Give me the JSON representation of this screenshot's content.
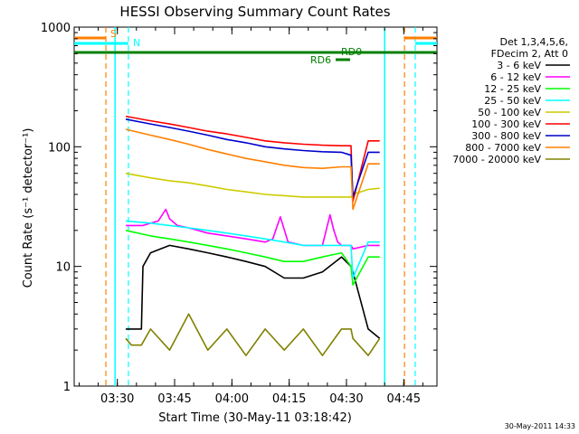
{
  "chart_data": {
    "type": "line",
    "title": "HESSI Observing Summary Count Rates",
    "xlabel": "Start Time (30-May-11 03:18:42)",
    "ylabel": "Count Rate (s⁻¹ detector⁻¹)",
    "x_unit": "minutes after 03:18:42",
    "xlim": [
      0,
      95
    ],
    "ylim": [
      1,
      1000
    ],
    "yscale": "log",
    "x_tick_labels": [
      "03:30",
      "03:45",
      "04:00",
      "04:15",
      "04:30",
      "04:45"
    ],
    "x_tick_values": [
      11.3,
      26.3,
      41.3,
      56.3,
      71.3,
      86.3
    ],
    "y_tick_labels": [
      "1",
      "10",
      "100",
      "1000"
    ],
    "y_tick_values": [
      1,
      10,
      100,
      1000
    ],
    "legend": {
      "placement": "right",
      "header_lines": [
        "Det 1,3,4,5,6,",
        "FDecim 2, Att 0"
      ]
    },
    "series": [
      {
        "name": "3 - 6 keV",
        "color": "#000000",
        "x": [
          13.5,
          17.6,
          18,
          20,
          25,
          30,
          35,
          40,
          45,
          50,
          55,
          60,
          65,
          70,
          72.5,
          73,
          77,
          80
        ],
        "values": [
          3,
          3,
          10,
          13,
          15,
          14,
          13,
          12,
          11,
          10,
          8,
          8,
          9,
          12,
          10,
          9,
          3,
          2.5
        ]
      },
      {
        "name": "6 - 12 keV",
        "color": "#ff00ff",
        "x": [
          13.5,
          18,
          22,
          24,
          25,
          27,
          30,
          35,
          40,
          45,
          50,
          52,
          54,
          56,
          60,
          65,
          67,
          68,
          69,
          70,
          72.5,
          73,
          77,
          80
        ],
        "values": [
          22,
          22,
          24,
          30,
          25,
          22,
          21,
          19,
          18,
          17,
          16,
          17,
          26,
          16,
          15,
          15,
          27,
          20,
          16,
          15,
          15,
          14,
          15,
          15
        ]
      },
      {
        "name": "12 - 25 keV",
        "color": "#00ff00",
        "x": [
          13.5,
          20,
          25,
          30,
          35,
          40,
          45,
          50,
          55,
          60,
          65,
          70,
          72.5,
          73,
          77,
          80
        ],
        "values": [
          20,
          18,
          17,
          16,
          15,
          14,
          13,
          12,
          11,
          11,
          12,
          13,
          10,
          7,
          12,
          12
        ]
      },
      {
        "name": "25 - 50 keV",
        "color": "#00ffff",
        "x": [
          13.5,
          20,
          25,
          30,
          35,
          40,
          45,
          50,
          55,
          60,
          65,
          70,
          72.5,
          73,
          77,
          80
        ],
        "values": [
          24,
          23,
          22,
          21,
          20,
          19,
          18,
          17,
          16,
          15,
          15,
          15,
          15,
          8,
          16,
          16
        ]
      },
      {
        "name": "50 - 100 keV",
        "color": "#cccc00",
        "x": [
          13.5,
          20,
          25,
          30,
          35,
          40,
          45,
          50,
          55,
          60,
          65,
          70,
          72.5,
          73,
          77,
          80
        ],
        "values": [
          60,
          55,
          52,
          50,
          47,
          44,
          42,
          40,
          39,
          38,
          38,
          38,
          38,
          40,
          44,
          45
        ]
      },
      {
        "name": "100 - 300 keV",
        "color": "#ff0000",
        "x": [
          13.5,
          20,
          25,
          30,
          35,
          40,
          45,
          50,
          55,
          60,
          65,
          70,
          72.5,
          73,
          77,
          80
        ],
        "values": [
          180,
          165,
          155,
          145,
          135,
          128,
          120,
          112,
          108,
          105,
          103,
          102,
          102,
          35,
          112,
          112
        ]
      },
      {
        "name": "300 - 800 keV",
        "color": "#0000cc",
        "x": [
          13.5,
          20,
          25,
          30,
          35,
          40,
          45,
          50,
          55,
          60,
          65,
          70,
          72.5,
          73,
          77,
          80
        ],
        "values": [
          170,
          155,
          145,
          135,
          125,
          115,
          108,
          100,
          96,
          93,
          91,
          90,
          85,
          38,
          90,
          90
        ]
      },
      {
        "name": "800 - 7000 keV",
        "color": "#ff8000",
        "x": [
          13.5,
          20,
          25,
          30,
          35,
          40,
          45,
          50,
          55,
          60,
          65,
          70,
          72.5,
          73,
          77,
          80
        ],
        "values": [
          140,
          125,
          115,
          105,
          95,
          87,
          80,
          75,
          70,
          67,
          66,
          68,
          68,
          30,
          72,
          72
        ]
      },
      {
        "name": "7000 - 20000 keV",
        "color": "#808000",
        "x": [
          13.5,
          15,
          17.6,
          20,
          25,
          30,
          35,
          40,
          45,
          50,
          55,
          60,
          65,
          70,
          72.5,
          73,
          77,
          80
        ],
        "values": [
          2.5,
          2.2,
          2.2,
          3,
          2,
          4,
          2,
          3,
          1.8,
          3,
          2,
          3,
          1.8,
          3,
          3,
          2.5,
          1.8,
          2.5
        ]
      }
    ],
    "annotations": {
      "S": {
        "label": "S",
        "color": "#ff8000",
        "times": [
          8.3,
          86.5
        ]
      },
      "N": {
        "label": "N",
        "color": "#00ffff",
        "times": [
          14.2,
          89.3
        ]
      },
      "RD0": {
        "label": "RD0",
        "color": "#008000"
      },
      "RD6": {
        "label": "RD6",
        "color": "#008000"
      },
      "cyan_markers": [
        10.7,
        81.3
      ]
    }
  },
  "footer_date": "30-May-2011 14:33"
}
